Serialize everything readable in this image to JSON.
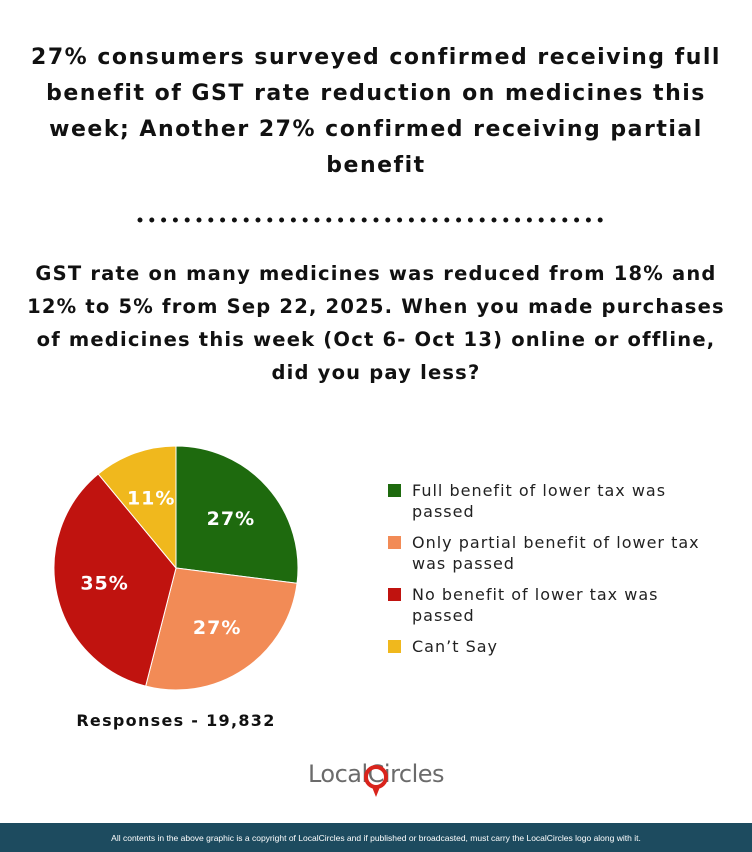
{
  "chart_data": {
    "type": "pie",
    "title": "27% consumers surveyed confirmed receiving full benefit of GST rate reduction on medicines this week; Another 27% confirmed receiving partial benefit",
    "subtitle": "GST rate on many medicines was reduced from 18% and 12% to 5% from Sep 22, 2025. When you made purchases of medicines this week (Oct 6- Oct 13) online or offline, did you pay less?",
    "categories": [
      "Full benefit of lower tax was passed",
      "Only partial benefit of lower tax was passed",
      "No benefit of lower tax was passed",
      "Can’t Say"
    ],
    "values": [
      27,
      27,
      35,
      11
    ],
    "value_labels": [
      "27%",
      "27%",
      "35%",
      "11%"
    ],
    "colors": [
      "#1e6a0e",
      "#f28b56",
      "#c0130f",
      "#f0b81d"
    ],
    "annotation": "Responses - 19,832"
  },
  "logo": "LocalCircles",
  "footer": "All contents in the above graphic is a copyright of LocalCircles and if published or broadcasted, must carry the LocalCircles logo along with it."
}
